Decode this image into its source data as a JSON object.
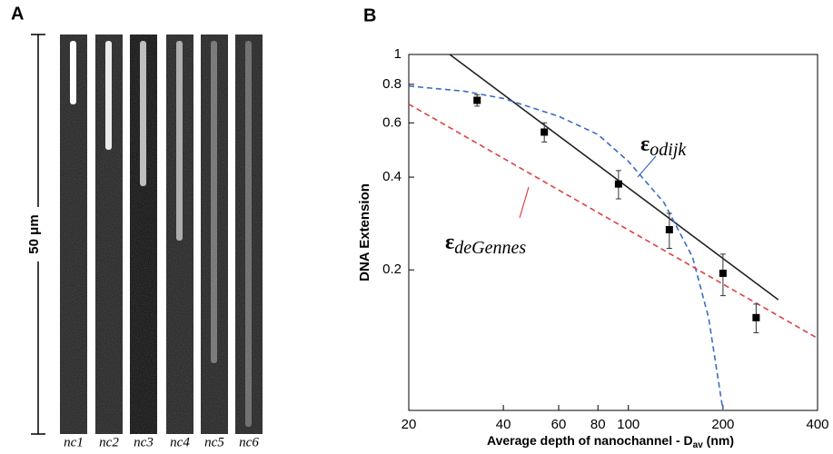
{
  "panel_a": {
    "label": "A",
    "scale_label": "50 μm",
    "channels": [
      "nc1",
      "nc2",
      "nc3",
      "nc4",
      "nc5",
      "nc6"
    ]
  },
  "chart_data": {
    "type": "scatter",
    "panel_label": "B",
    "x_label": {
      "main": "Average depth of nanochannel - D",
      "sub": "av",
      "unit": " (nm)"
    },
    "y_label": "DNA Extension",
    "log_x": true,
    "log_y": true,
    "xlim": [
      20,
      400
    ],
    "ylim": [
      0.07,
      1
    ],
    "xticks": [
      20,
      40,
      60,
      80,
      100,
      200,
      400
    ],
    "yticks": [
      0.2,
      0.4,
      0.6,
      0.8,
      1
    ],
    "points": {
      "color": "#000000",
      "x": [
        33,
        54,
        93,
        135,
        200,
        255
      ],
      "values": [
        0.71,
        0.56,
        0.38,
        0.27,
        0.195,
        0.14
      ],
      "errors": [
        0.03,
        0.04,
        0.04,
        0.035,
        0.03,
        0.015
      ]
    },
    "lines": [
      {
        "color": "#222222",
        "dashed": false,
        "x": [
          27,
          300
        ],
        "values": [
          1,
          0.16
        ]
      },
      {
        "color": "#3a6cc8",
        "dashed": true,
        "x": [
          20,
          30,
          40,
          60,
          80,
          100,
          130,
          160,
          180,
          200
        ],
        "values": [
          0.79,
          0.76,
          0.72,
          0.63,
          0.55,
          0.45,
          0.33,
          0.22,
          0.14,
          0.07
        ]
      },
      {
        "color": "#e04040",
        "dashed": true,
        "x": [
          20,
          400
        ],
        "values": [
          0.69,
          0.12
        ]
      }
    ],
    "annotations": [
      {
        "symbol": "ε",
        "sub": "odijk",
        "color": "#3a6cc8"
      },
      {
        "symbol": "ε",
        "sub": "deGennes",
        "color": "#e04040"
      }
    ]
  }
}
